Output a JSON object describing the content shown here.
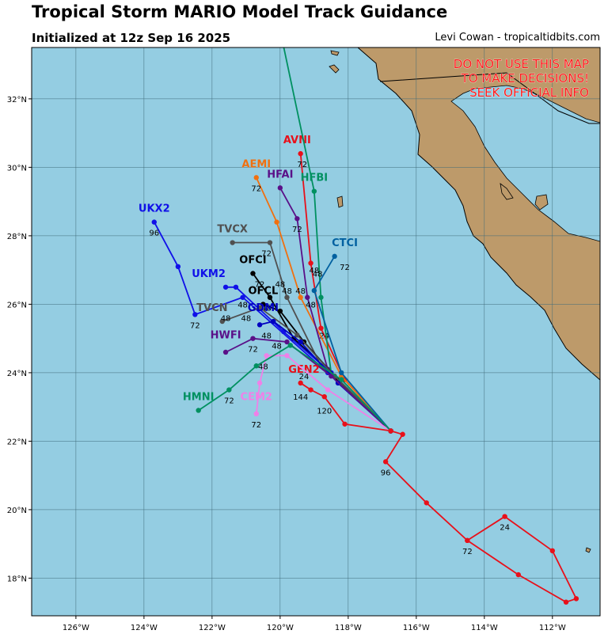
{
  "header": {
    "title": "Tropical Storm MARIO Model Track Guidance",
    "init": "Initialized at 12z Sep 16 2025",
    "credit": "Levi Cowan - tropicaltidbits.com"
  },
  "map": {
    "lon_range": [
      -127.3,
      -110.6
    ],
    "lat_range": [
      16.9,
      33.5
    ],
    "ocean_color": "#94cde2",
    "land_color": "#bd9a6a",
    "grid_color": "#3f6b7a",
    "lon_ticks": [
      "126°W",
      "124°W",
      "122°W",
      "120°W",
      "118°W",
      "116°W",
      "114°W",
      "112°W"
    ],
    "lat_ticks": [
      "18°N",
      "20°N",
      "22°N",
      "24°N",
      "26°N",
      "28°N",
      "30°N",
      "32°N"
    ],
    "warning": [
      "DO NOT USE THIS MAP",
      "TO MAKE DECISIONS!",
      "SEEK OFFICIAL INFO"
    ]
  },
  "tracks": [
    {
      "name": "AVNI",
      "color": "#e8101a",
      "points": [
        [
          -116.75,
          22.3
        ],
        [
          -118.1,
          23.8
        ],
        [
          -118.8,
          25.3
        ],
        [
          -119.1,
          27.2
        ],
        [
          -119.4,
          30.4
        ]
      ],
      "labels": [
        {
          "text": "24",
          "lon": -118.7,
          "lat": 25.1
        },
        {
          "text": "48",
          "lon": -119.0,
          "lat": 27.0
        },
        {
          "text": "72",
          "lon": -119.35,
          "lat": 30.1
        }
      ],
      "name_pos": [
        -119.5,
        30.7
      ]
    },
    {
      "name": "AEMI",
      "color": "#f07010",
      "points": [
        [
          -116.75,
          22.3
        ],
        [
          -118.2,
          23.9
        ],
        [
          -119.4,
          26.2
        ],
        [
          -120.1,
          28.4
        ],
        [
          -120.7,
          29.7
        ]
      ],
      "labels": [
        {
          "text": "48",
          "lon": -119.4,
          "lat": 26.4
        },
        {
          "text": "72",
          "lon": -120.7,
          "lat": 29.4
        }
      ],
      "name_pos": [
        -120.7,
        30.0
      ]
    },
    {
      "name": "HFAI",
      "color": "#5a1088",
      "points": [
        [
          -116.75,
          22.3
        ],
        [
          -118.6,
          24.1
        ],
        [
          -119.2,
          26.2
        ],
        [
          -119.5,
          28.5
        ],
        [
          -120.0,
          29.4
        ]
      ],
      "labels": [
        {
          "text": "48",
          "lon": -119.1,
          "lat": 26.0
        },
        {
          "text": "72",
          "lon": -119.5,
          "lat": 28.2
        }
      ],
      "name_pos": [
        -120.0,
        29.7
      ]
    },
    {
      "name": "HFBI",
      "color": "#009060",
      "points": [
        [
          -116.75,
          22.3
        ],
        [
          -118.5,
          24.0
        ],
        [
          -118.8,
          26.2
        ],
        [
          -119.0,
          29.3
        ],
        [
          -120.0,
          34.0
        ]
      ],
      "labels": [],
      "name_pos": [
        -119.0,
        29.6
      ]
    },
    {
      "name": "UKX2",
      "color": "#1010e8",
      "points": [
        [
          -116.75,
          22.3
        ],
        [
          -118.6,
          24.0
        ],
        [
          -121.1,
          26.2
        ],
        [
          -122.5,
          25.7
        ],
        [
          -123.0,
          27.1
        ],
        [
          -123.7,
          28.4
        ]
      ],
      "labels": [
        {
          "text": "48",
          "lon": -121.1,
          "lat": 26.0
        },
        {
          "text": "72",
          "lon": -122.5,
          "lat": 25.4
        },
        {
          "text": "96",
          "lon": -123.7,
          "lat": 28.1
        }
      ],
      "name_pos": [
        -123.7,
        28.7
      ]
    },
    {
      "name": "TVCX",
      "color": "#505050",
      "points": [
        [
          -116.75,
          22.3
        ],
        [
          -118.8,
          24.2
        ],
        [
          -119.8,
          26.2
        ],
        [
          -120.3,
          27.8
        ],
        [
          -121.4,
          27.8
        ]
      ],
      "labels": [
        {
          "text": "48",
          "lon": -119.8,
          "lat": 26.4
        },
        {
          "text": "72",
          "lon": -120.4,
          "lat": 27.5
        }
      ],
      "name_pos": [
        -121.4,
        28.1
      ]
    },
    {
      "name": "CTCI",
      "color": "#0060a0",
      "points": [
        [
          -116.75,
          22.3
        ],
        [
          -118.2,
          24.0
        ],
        [
          -119.0,
          26.4
        ],
        [
          -118.4,
          27.4
        ]
      ],
      "labels": [
        {
          "text": "48",
          "lon": -118.9,
          "lat": 26.9
        },
        {
          "text": "72",
          "lon": -118.1,
          "lat": 27.1
        }
      ],
      "name_pos": [
        -118.1,
        27.7
      ]
    },
    {
      "name": "OFCI",
      "color": "#000000",
      "points": [
        [
          -116.75,
          22.3
        ],
        [
          -118.3,
          23.8
        ],
        [
          -119.6,
          25.0
        ],
        [
          -120.3,
          26.2
        ],
        [
          -120.8,
          26.9
        ]
      ],
      "labels": [
        {
          "text": "48",
          "lon": -120.0,
          "lat": 26.6
        },
        {
          "text": "72",
          "lon": -120.6,
          "lat": 26.6
        }
      ],
      "name_pos": [
        -120.8,
        27.2
      ]
    },
    {
      "name": "UKM2",
      "color": "#1010e8",
      "points": [
        [
          -116.75,
          22.3
        ],
        [
          -118.5,
          24.0
        ],
        [
          -119.9,
          25.2
        ],
        [
          -121.3,
          26.5
        ],
        [
          -121.6,
          26.5
        ]
      ],
      "labels": [
        {
          "text": "48",
          "lon": -121.0,
          "lat": 25.6
        }
      ],
      "name_pos": [
        -122.1,
        26.8
      ]
    },
    {
      "name": "OFCL",
      "color": "#000000",
      "points": [
        [
          -116.75,
          22.3
        ],
        [
          -118.3,
          23.8
        ],
        [
          -119.3,
          24.9
        ],
        [
          -120.0,
          25.8
        ],
        [
          -120.5,
          26.0
        ]
      ],
      "labels": [
        {
          "text": "48",
          "lon": -120.4,
          "lat": 25.9
        }
      ],
      "name_pos": [
        -120.5,
        26.3
      ]
    },
    {
      "name": "TVCN",
      "color": "#505050",
      "points": [
        [
          -116.75,
          22.3
        ],
        [
          -118.4,
          23.9
        ],
        [
          -119.5,
          25.1
        ],
        [
          -120.6,
          25.9
        ],
        [
          -121.7,
          25.5
        ]
      ],
      "labels": [
        {
          "text": "48",
          "lon": -121.6,
          "lat": 25.6
        }
      ],
      "name_pos": [
        -122.0,
        25.8
      ]
    },
    {
      "name": "GDMI",
      "color": "#0000c0",
      "points": [
        [
          -116.75,
          22.3
        ],
        [
          -118.3,
          23.7
        ],
        [
          -119.4,
          24.9
        ],
        [
          -120.2,
          25.5
        ],
        [
          -120.6,
          25.4
        ]
      ],
      "labels": [
        {
          "text": "48",
          "lon": -120.4,
          "lat": 25.1
        }
      ],
      "name_pos": [
        -120.5,
        25.8
      ]
    },
    {
      "name": "HWFI",
      "color": "#5a1088",
      "points": [
        [
          -116.75,
          22.3
        ],
        [
          -118.5,
          23.9
        ],
        [
          -119.8,
          24.9
        ],
        [
          -120.8,
          25.0
        ],
        [
          -121.6,
          24.6
        ]
      ],
      "labels": [
        {
          "text": "48",
          "lon": -120.1,
          "lat": 24.8
        },
        {
          "text": "72",
          "lon": -120.8,
          "lat": 24.7
        }
      ],
      "name_pos": [
        -121.6,
        25.0
      ]
    },
    {
      "name": "GEN2",
      "color": "#e8101a",
      "points": [
        [
          -116.75,
          22.3
        ],
        [
          -118.1,
          22.5
        ],
        [
          -118.7,
          23.3
        ],
        [
          -119.1,
          23.5
        ],
        [
          -119.4,
          23.7
        ]
      ],
      "labels": [
        {
          "text": "24",
          "lon": -119.3,
          "lat": 23.9
        },
        {
          "text": "144",
          "lon": -119.4,
          "lat": 23.3
        },
        {
          "text": "120",
          "lon": -118.7,
          "lat": 22.9
        }
      ],
      "name_pos": [
        -119.3,
        24.0
      ]
    },
    {
      "name": "CEM2",
      "color": "#f080e8",
      "points": [
        [
          -116.75,
          22.3
        ],
        [
          -118.6,
          23.5
        ],
        [
          -119.8,
          24.5
        ],
        [
          -120.4,
          24.5
        ],
        [
          -120.6,
          23.7
        ],
        [
          -120.7,
          22.8
        ]
      ],
      "labels": [
        {
          "text": "48",
          "lon": -120.5,
          "lat": 24.2
        },
        {
          "text": "72",
          "lon": -120.7,
          "lat": 22.5
        }
      ],
      "name_pos": [
        -120.7,
        23.2
      ]
    },
    {
      "name": "HMNI",
      "color": "#009060",
      "points": [
        [
          -116.75,
          22.3
        ],
        [
          -118.2,
          23.8
        ],
        [
          -119.7,
          24.8
        ],
        [
          -120.7,
          24.2
        ],
        [
          -121.5,
          23.5
        ],
        [
          -122.4,
          22.9
        ]
      ],
      "labels": [
        {
          "text": "72",
          "lon": -121.5,
          "lat": 23.2
        }
      ],
      "name_pos": [
        -122.4,
        23.2
      ]
    },
    {
      "name": "GEN2-long",
      "color": "#e8101a",
      "points": [
        [
          -116.75,
          22.3
        ],
        [
          -116.4,
          22.2
        ],
        [
          -116.9,
          21.4
        ],
        [
          -115.7,
          20.2
        ],
        [
          -114.5,
          19.1
        ],
        [
          -113.4,
          19.8
        ],
        [
          -112.0,
          18.8
        ],
        [
          -111.3,
          17.4
        ],
        [
          -111.6,
          17.3
        ],
        [
          -113.0,
          18.1
        ],
        [
          -114.5,
          19.1
        ]
      ],
      "labels": [
        {
          "text": "96",
          "lon": -116.9,
          "lat": 21.1
        },
        {
          "text": "24",
          "lon": -113.4,
          "lat": 19.5
        },
        {
          "text": "72",
          "lon": -114.5,
          "lat": 18.8
        }
      ],
      "name_pos": null
    }
  ]
}
